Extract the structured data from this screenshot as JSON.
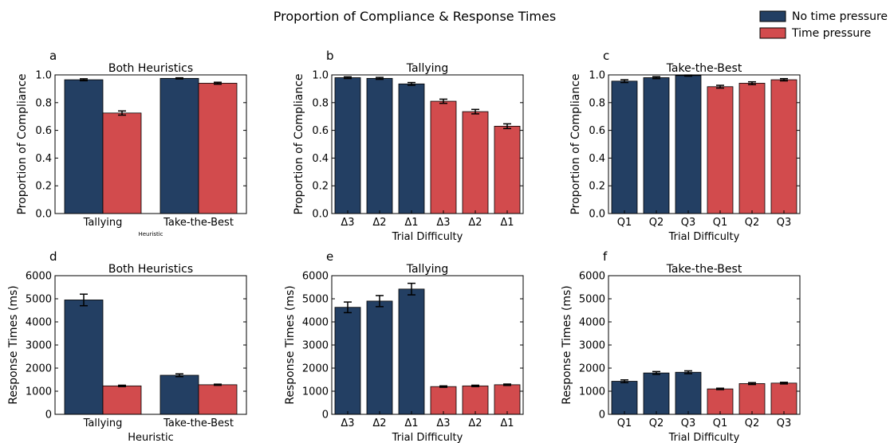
{
  "figure": {
    "title": "Proportion of Compliance & Response Times",
    "legend": {
      "placement": "top-right",
      "entries": [
        {
          "label": "No time pressure",
          "color": "#233f63"
        },
        {
          "label": "Time pressure",
          "color": "#d24b4d"
        }
      ]
    },
    "colors": {
      "no_pressure": "#233f63",
      "pressure": "#d24b4d"
    }
  },
  "chart_data": [
    {
      "panel": "a",
      "type": "bar",
      "title": "Both Heuristics",
      "xlabel": "Heuristic",
      "ylabel": "Proportion of Compliance",
      "ylim": [
        0,
        1.0
      ],
      "yticks": [
        0.0,
        0.2,
        0.4,
        0.6,
        0.8,
        1.0
      ],
      "ytick_labels": [
        "0.0",
        "0.2",
        "0.4",
        "0.6",
        "0.8",
        "1.0"
      ],
      "groups": [
        "Tallying",
        "Take-the-Best"
      ],
      "series": [
        {
          "name": "No time pressure",
          "values": [
            0.965,
            0.975
          ],
          "errors": [
            0.007,
            0.004
          ]
        },
        {
          "name": "Time pressure",
          "values": [
            0.725,
            0.94
          ],
          "errors": [
            0.015,
            0.007
          ]
        }
      ]
    },
    {
      "panel": "b",
      "type": "bar",
      "title": "Tallying",
      "xlabel": "Trial Difficulty",
      "ylabel": "Proportion of Compliance",
      "ylim": [
        0,
        1.0
      ],
      "yticks": [
        0.0,
        0.2,
        0.4,
        0.6,
        0.8,
        1.0
      ],
      "ytick_labels": [
        "0.0",
        "0.2",
        "0.4",
        "0.6",
        "0.8",
        "1.0"
      ],
      "categories": [
        "Δ3",
        "Δ2",
        "Δ1",
        "Δ3",
        "Δ2",
        "Δ1"
      ],
      "values": [
        0.98,
        0.975,
        0.935,
        0.81,
        0.735,
        0.63
      ],
      "errors": [
        0.006,
        0.007,
        0.01,
        0.015,
        0.016,
        0.017
      ],
      "series_of_bar": [
        0,
        0,
        0,
        1,
        1,
        1
      ]
    },
    {
      "panel": "c",
      "type": "bar",
      "title": "Take-the-Best",
      "xlabel": "Trial Difficulty",
      "ylabel": "Proportion of Compliance",
      "ylim": [
        0,
        1.0
      ],
      "yticks": [
        0.0,
        0.2,
        0.4,
        0.6,
        0.8,
        1.0
      ],
      "ytick_labels": [
        "0.0",
        "0.2",
        "0.4",
        "0.6",
        "0.8",
        "1.0"
      ],
      "categories": [
        "Q1",
        "Q2",
        "Q3",
        "Q1",
        "Q2",
        "Q3"
      ],
      "values": [
        0.955,
        0.98,
        0.995,
        0.915,
        0.94,
        0.965
      ],
      "errors": [
        0.01,
        0.007,
        0.004,
        0.01,
        0.01,
        0.008
      ],
      "series_of_bar": [
        0,
        0,
        0,
        1,
        1,
        1
      ]
    },
    {
      "panel": "d",
      "type": "bar",
      "title": "Both Heuristics",
      "xlabel": "Heuristic",
      "ylabel": "Response Times (ms)",
      "ylim": [
        0,
        6000
      ],
      "yticks": [
        0,
        1000,
        2000,
        3000,
        4000,
        5000,
        6000
      ],
      "ytick_labels": [
        "0",
        "1000",
        "2000",
        "3000",
        "4000",
        "5000",
        "6000"
      ],
      "groups": [
        "Tallying",
        "Take-the-Best"
      ],
      "series": [
        {
          "name": "No time pressure",
          "values": [
            4950,
            1690
          ],
          "errors": [
            250,
            60
          ]
        },
        {
          "name": "Time pressure",
          "values": [
            1230,
            1280
          ],
          "errors": [
            30,
            25
          ]
        }
      ]
    },
    {
      "panel": "e",
      "type": "bar",
      "title": "Tallying",
      "xlabel": "Trial Difficulty",
      "ylabel": "Response Times (ms)",
      "ylim": [
        0,
        6000
      ],
      "yticks": [
        0,
        1000,
        2000,
        3000,
        4000,
        5000,
        6000
      ],
      "ytick_labels": [
        "0",
        "1000",
        "2000",
        "3000",
        "4000",
        "5000",
        "6000"
      ],
      "categories": [
        "Δ3",
        "Δ2",
        "Δ1",
        "Δ3",
        "Δ2",
        "Δ1"
      ],
      "values": [
        4630,
        4900,
        5420,
        1200,
        1230,
        1280
      ],
      "errors": [
        230,
        240,
        250,
        30,
        30,
        30
      ],
      "series_of_bar": [
        0,
        0,
        0,
        1,
        1,
        1
      ]
    },
    {
      "panel": "f",
      "type": "bar",
      "title": "Take-the-Best",
      "xlabel": "Trial Difficulty",
      "ylabel": "Response Times (ms)",
      "ylim": [
        0,
        6000
      ],
      "yticks": [
        0,
        1000,
        2000,
        3000,
        4000,
        5000,
        6000
      ],
      "ytick_labels": [
        "0",
        "1000",
        "2000",
        "3000",
        "4000",
        "5000",
        "6000"
      ],
      "categories": [
        "Q1",
        "Q2",
        "Q3",
        "Q1",
        "Q2",
        "Q3"
      ],
      "values": [
        1430,
        1790,
        1820,
        1100,
        1330,
        1350
      ],
      "errors": [
        60,
        60,
        60,
        30,
        40,
        35
      ],
      "series_of_bar": [
        0,
        0,
        0,
        1,
        1,
        1
      ]
    }
  ]
}
